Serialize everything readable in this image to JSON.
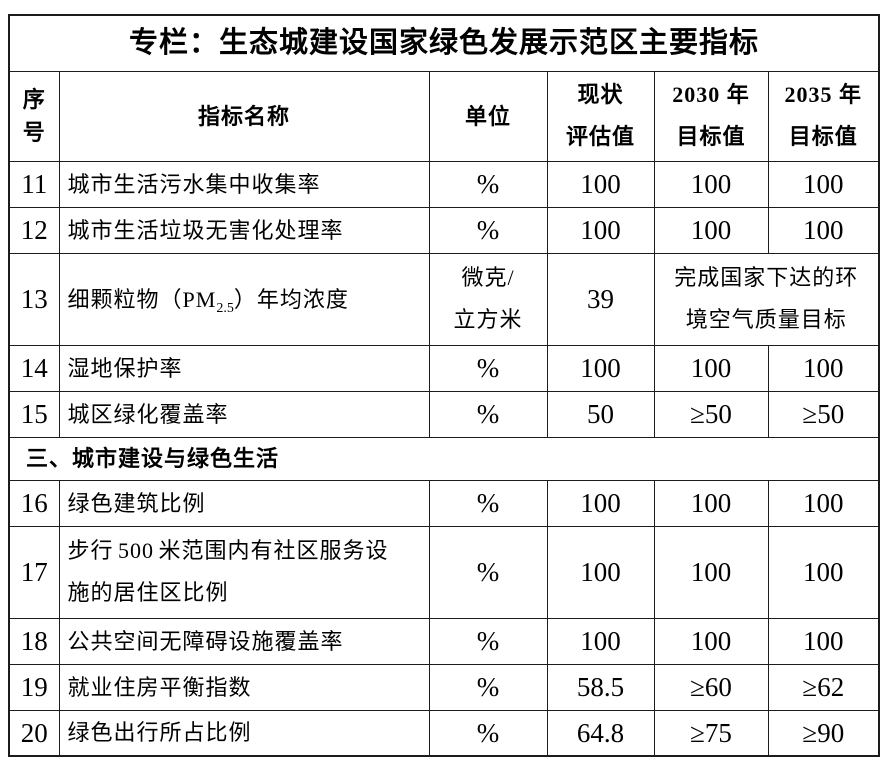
{
  "title": "专栏：生态城建设国家绿色发展示范区主要指标",
  "colors": {
    "background": "#ffffff",
    "text": "#000000",
    "border": "#1c1c1c"
  },
  "header": {
    "no": "序号",
    "name": "指标名称",
    "unit": "单位",
    "current": "现状\n评估值",
    "t2030": "2030 年\n目标值",
    "t2035": "2035 年\n目标值"
  },
  "section": {
    "label": "三、城市建设与绿色生活"
  },
  "rows": [
    {
      "no": "11",
      "name": "城市生活污水集中收集率",
      "unit": "%",
      "current": "100",
      "t2030": "100",
      "t2035": "100"
    },
    {
      "no": "12",
      "name": "城市生活垃圾无害化处理率",
      "unit": "%",
      "current": "100",
      "t2030": "100",
      "t2035": "100"
    },
    {
      "no": "13",
      "name_prefix": "细颗粒物（PM",
      "name_sub": "2.5",
      "name_suffix": "）年均浓度",
      "unit": "微克/\n立方米",
      "current": "39",
      "target_merged": "完成国家下达的环\n境空气质量目标"
    },
    {
      "no": "14",
      "name": "湿地保护率",
      "unit": "%",
      "current": "100",
      "t2030": "100",
      "t2035": "100"
    },
    {
      "no": "15",
      "name": "城区绿化覆盖率",
      "unit": "%",
      "current": "50",
      "t2030": "≥50",
      "t2035": "≥50"
    },
    {
      "no": "16",
      "name": "绿色建筑比例",
      "unit": "%",
      "current": "100",
      "t2030": "100",
      "t2035": "100"
    },
    {
      "no": "17",
      "name": "步行 500 米范围内有社区服务设\n施的居住区比例",
      "unit": "%",
      "current": "100",
      "t2030": "100",
      "t2035": "100"
    },
    {
      "no": "18",
      "name": "公共空间无障碍设施覆盖率",
      "unit": "%",
      "current": "100",
      "t2030": "100",
      "t2035": "100"
    },
    {
      "no": "19",
      "name": "就业住房平衡指数",
      "unit": "%",
      "current": "58.5",
      "t2030": "≥60",
      "t2035": "≥62"
    },
    {
      "no": "20",
      "name": "绿色出行所占比例",
      "unit": "%",
      "current": "64.8",
      "t2030": "≥75",
      "t2035": "≥90"
    }
  ]
}
